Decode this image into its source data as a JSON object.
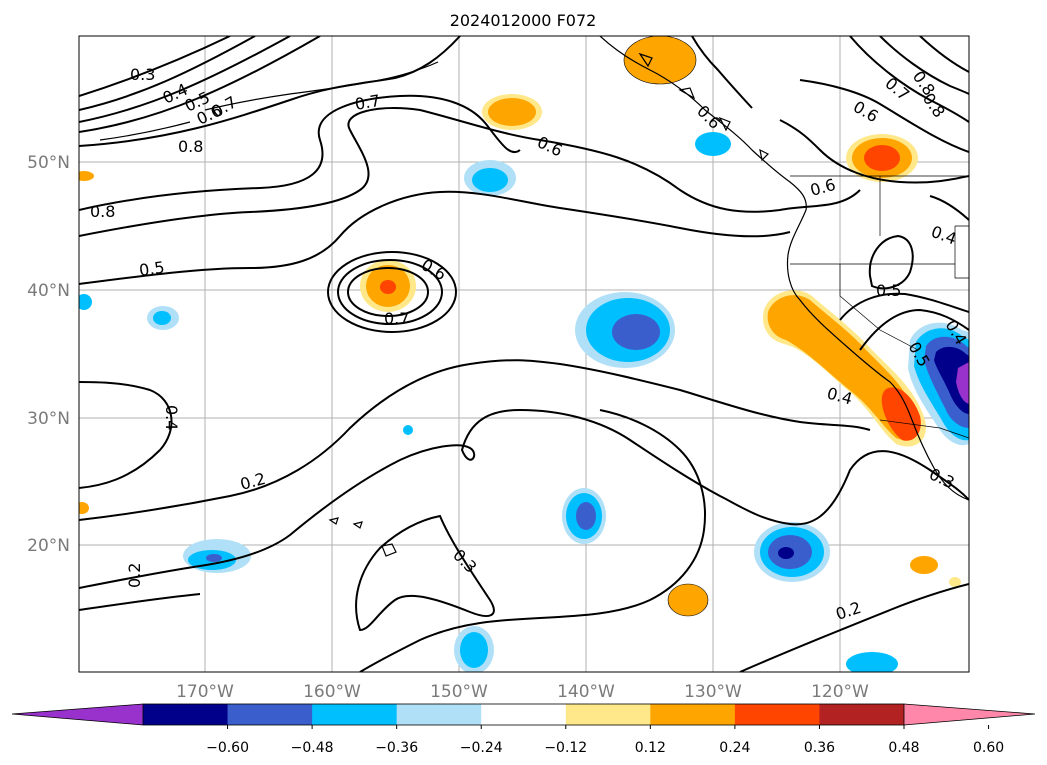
{
  "title": "2024012000 F072",
  "lat_labels": [
    "50°N",
    "40°N",
    "30°N",
    "20°N"
  ],
  "lon_labels": [
    "170°W",
    "160°W",
    "150°W",
    "140°W",
    "130°W",
    "120°W"
  ],
  "contour_labels": [
    "0.3",
    "0.4",
    "0.5",
    "0.6",
    "0.7",
    "0.8",
    "0.8",
    "0.7",
    "0.6",
    "0.8",
    "0.5",
    "0.6",
    "0.7",
    "0.6",
    "0.6",
    "0.7",
    "0.6",
    "0.8",
    "0.4",
    "0.5",
    "0.4",
    "0.5",
    "0.4",
    "0.2",
    "0.3",
    "0.2",
    "0.2",
    "0.3"
  ],
  "colorbar": {
    "ticks": [
      "−0.60",
      "−0.48",
      "−0.36",
      "−0.24",
      "−0.12",
      "0.12",
      "0.24",
      "0.36",
      "0.48",
      "0.60"
    ],
    "colors": [
      "#9932cc",
      "#00008b",
      "#3a5fcd",
      "#00bfff",
      "#b0e0f8",
      "#ffffff",
      "#ffe88a",
      "#ffa500",
      "#ff4500",
      "#b22222",
      "#ff88aa"
    ]
  }
}
